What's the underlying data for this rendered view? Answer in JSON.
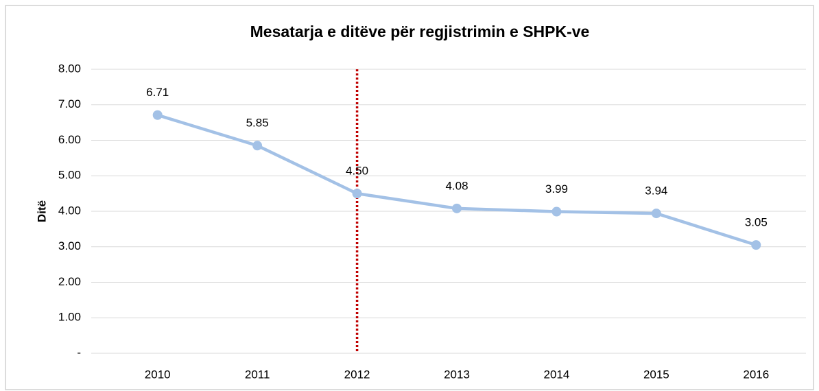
{
  "chart_data": {
    "type": "line",
    "title": "Mesatarja e ditëve për regjistrimin e SHPK-ve",
    "y_label": "Ditë",
    "categories": [
      "2010",
      "2011",
      "2012",
      "2013",
      "2014",
      "2015",
      "2016"
    ],
    "series": [
      {
        "name": "Ditë",
        "color": "#a3c1e6",
        "values": [
          6.71,
          5.85,
          4.5,
          4.08,
          3.99,
          3.94,
          3.05
        ],
        "value_labels": [
          "6.71",
          "5.85",
          "4.50",
          "4.08",
          "3.99",
          "3.94",
          "3.05"
        ]
      }
    ],
    "ylim": [
      0,
      8
    ],
    "yticks": [
      {
        "value": 0,
        "label": "-"
      },
      {
        "value": 1,
        "label": "1.00"
      },
      {
        "value": 2,
        "label": "2.00"
      },
      {
        "value": 3,
        "label": "3.00"
      },
      {
        "value": 4,
        "label": "4.00"
      },
      {
        "value": 5,
        "label": "5.00"
      },
      {
        "value": 6,
        "label": "6.00"
      },
      {
        "value": 7,
        "label": "7.00"
      },
      {
        "value": 8,
        "label": "8.00"
      }
    ],
    "grid": true,
    "reference_line": {
      "x": "2012",
      "color": "#c00000",
      "style": "dotted"
    }
  }
}
